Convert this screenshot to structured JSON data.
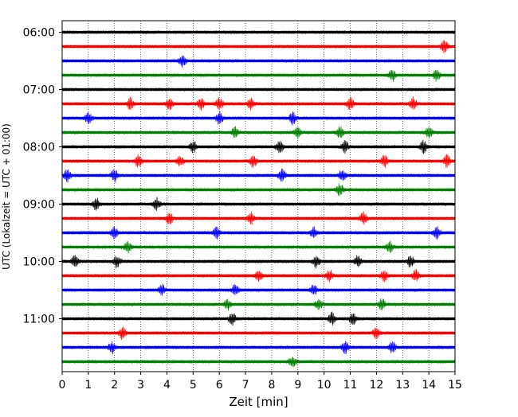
{
  "chart_data": {
    "type": "line",
    "title": "",
    "xlabel": "Zeit  [min]",
    "ylabel": "UTC (Lokalzeit = UTC + 01:00)",
    "xlim": [
      0,
      15
    ],
    "x_ticks": [
      "0",
      "1",
      "2",
      "3",
      "4",
      "5",
      "6",
      "7",
      "8",
      "9",
      "10",
      "11",
      "12",
      "13",
      "14",
      "15"
    ],
    "y_ticks": [
      "06:00",
      "07:00",
      "08:00",
      "09:00",
      "10:00",
      "11:00"
    ],
    "grid": "vertical dotted",
    "legend": "none",
    "trace_start_times": [
      "06:00",
      "06:15",
      "06:30",
      "06:45",
      "07:00",
      "07:15",
      "07:30",
      "07:45",
      "08:00",
      "08:15",
      "08:30",
      "08:45",
      "09:00",
      "09:15",
      "09:30",
      "09:45",
      "10:00",
      "10:15",
      "10:30",
      "10:45",
      "11:00",
      "11:15",
      "11:30",
      "11:45"
    ],
    "trace_colors": [
      "#000000",
      "#ff0000",
      "#0000ff",
      "#008000"
    ],
    "events_min": [
      [],
      [
        14.6
      ],
      [
        4.6
      ],
      [
        12.6,
        14.3
      ],
      [],
      [
        2.6,
        4.1,
        5.3,
        6.0,
        7.2,
        11.0,
        13.4
      ],
      [
        1.0,
        6.0,
        8.8
      ],
      [
        6.6,
        9.0,
        10.6,
        14.0
      ],
      [
        5.0,
        8.3,
        10.8,
        13.8
      ],
      [
        2.9,
        4.5,
        7.3,
        12.3,
        14.7
      ],
      [
        0.2,
        2.0,
        8.4,
        10.7
      ],
      [
        10.6
      ],
      [
        1.3,
        3.6
      ],
      [
        4.1,
        7.2,
        11.5
      ],
      [
        2.0,
        5.9,
        9.6,
        14.3
      ],
      [
        2.5,
        12.5
      ],
      [
        0.5,
        2.1,
        9.7,
        11.3,
        13.3
      ],
      [
        7.5,
        10.2,
        12.3,
        13.5
      ],
      [
        3.8,
        6.6,
        9.6
      ],
      [
        6.3,
        9.8,
        12.2
      ],
      [
        6.5,
        10.3,
        11.1
      ],
      [
        2.3,
        12.0
      ],
      [
        1.9,
        10.8,
        12.6
      ],
      [
        8.8
      ]
    ]
  }
}
